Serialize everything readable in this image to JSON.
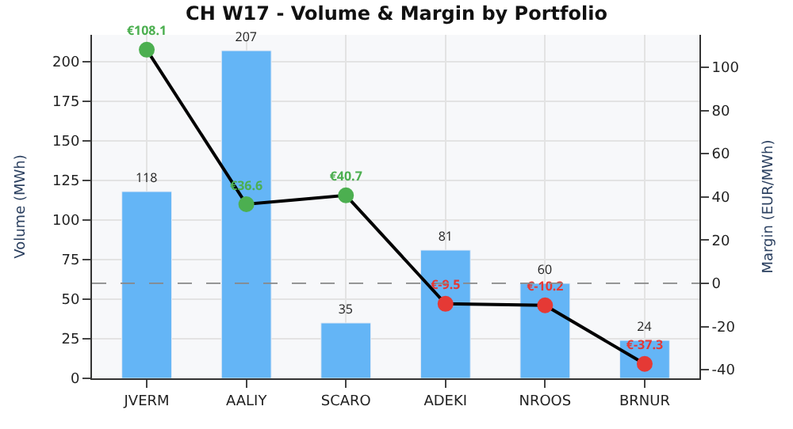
{
  "chart_data": {
    "type": "bar",
    "title": "CH W17 - Volume & Margin by Portfolio",
    "ylabel": "Volume (MWh)",
    "y2label": "Margin (EUR/MWh)",
    "categories": [
      "JVERM",
      "AALIY",
      "SCARO",
      "ADEKI",
      "NROOS",
      "BRNUR"
    ],
    "series": [
      {
        "color": "#64b5f6",
        "values": [
          118,
          207,
          35,
          81,
          60,
          24
        ],
        "value_labels": [
          "118",
          "207",
          "35",
          "81",
          "60",
          "24"
        ]
      },
      {
        "type": "line",
        "axis": "y2",
        "color": "#000000",
        "colors": [
          "#4caf50",
          "#4caf50",
          "#4caf50",
          "#e53935",
          "#e53935",
          "#e53935"
        ],
        "values": [
          108.1,
          36.6,
          40.7,
          -9.5,
          -10.2,
          -37.3
        ],
        "value_labels": [
          "€108.1",
          "€36.6",
          "€40.7",
          "€-9.5",
          "€-10.2",
          "€-37.3"
        ]
      }
    ],
    "ylim": [
      0,
      217
    ],
    "yticks": [
      0,
      25,
      50,
      75,
      100,
      125,
      150,
      175,
      200
    ],
    "y2lim": [
      -44,
      115
    ],
    "y2ticks": [
      -40,
      -20,
      0,
      20,
      40,
      60,
      80,
      100
    ],
    "ref_lines": [
      {
        "axis": "y2",
        "value": 0,
        "color": "#888888",
        "line_style": "dashed"
      }
    ],
    "grid": true,
    "marker": "circle",
    "line_style": "solid"
  }
}
